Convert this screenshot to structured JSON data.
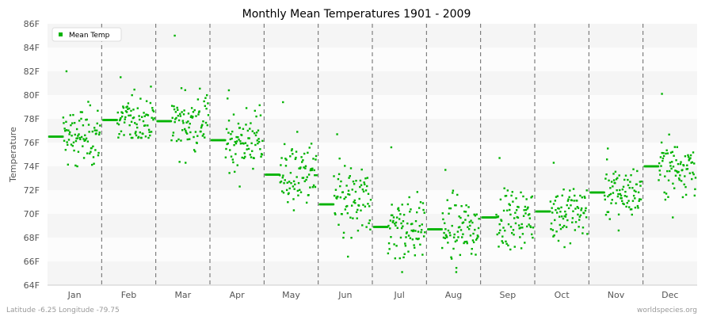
{
  "chart_data": {
    "type": "scatter",
    "title": "Monthly Mean Temperatures 1901 - 2009",
    "ylabel": "Temperature",
    "xlabel": "",
    "ylim": [
      64,
      86
    ],
    "y_ticks": [
      64,
      66,
      68,
      70,
      72,
      74,
      76,
      78,
      80,
      82,
      84,
      86
    ],
    "y_tick_unit": "F",
    "categories": [
      "Jan",
      "Feb",
      "Mar",
      "Apr",
      "May",
      "Jun",
      "Jul",
      "Aug",
      "Sep",
      "Oct",
      "Nov",
      "Dec"
    ],
    "legend": {
      "position": "top-left"
    },
    "grid": "horizontal-bands",
    "point_color": "#00b300",
    "band_colors": [
      "#f5f5f5",
      "#fcfcfc"
    ],
    "series": [
      {
        "name": "Mean Temp",
        "monthly_mean": [
          76.5,
          77.9,
          77.8,
          76.2,
          73.3,
          70.8,
          68.9,
          68.7,
          69.7,
          70.2,
          71.8,
          74.0
        ],
        "monthly_spread": [
          1.9,
          1.6,
          2.1,
          2.0,
          2.2,
          2.5,
          2.2,
          2.0,
          1.8,
          1.8,
          1.7,
          1.8
        ],
        "years": [
          1901,
          2009
        ],
        "monthly_max": [
          82.0,
          81.5,
          85.0,
          80.4,
          79.4,
          76.7,
          75.6,
          73.7,
          74.7,
          74.3,
          75.5,
          80.1
        ],
        "monthly_min": [
          74.0,
          76.4,
          74.3,
          72.3,
          70.3,
          66.4,
          65.1,
          65.1,
          67.0,
          67.2,
          68.6,
          69.7
        ]
      }
    ]
  },
  "footer": {
    "left": "Latitude -6.25 Longitude -79.75",
    "right": "worldspecies.org"
  }
}
